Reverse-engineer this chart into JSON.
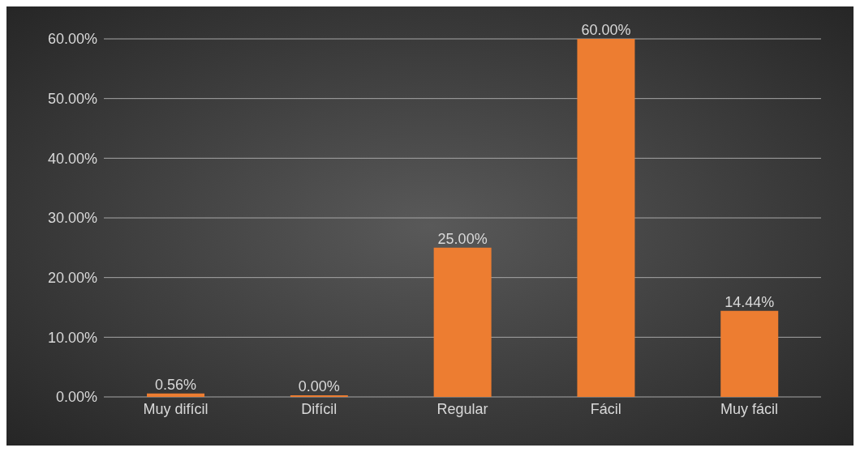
{
  "chart_data": {
    "type": "bar",
    "categories": [
      "Muy difícil",
      "Difícil",
      "Regular",
      "Fácil",
      "Muy fácil"
    ],
    "values": [
      0.56,
      0,
      25,
      60,
      14.44
    ],
    "color": "#ed7d31",
    "value_labels": [
      "0.56%",
      "0.00%",
      "25.00%",
      "60.00%",
      "14.44%"
    ],
    "ylim": [
      0,
      60
    ],
    "yticks": [
      {
        "value": 0,
        "label": "0.00%"
      },
      {
        "value": 10,
        "label": "10.00%"
      },
      {
        "value": 20,
        "label": "20.00%"
      },
      {
        "value": 30,
        "label": "30.00%"
      },
      {
        "value": 40,
        "label": "40.00%"
      },
      {
        "value": 50,
        "label": "50.00%"
      },
      {
        "value": 60,
        "label": "60.00%"
      }
    ],
    "grid": "y",
    "legend": false
  }
}
